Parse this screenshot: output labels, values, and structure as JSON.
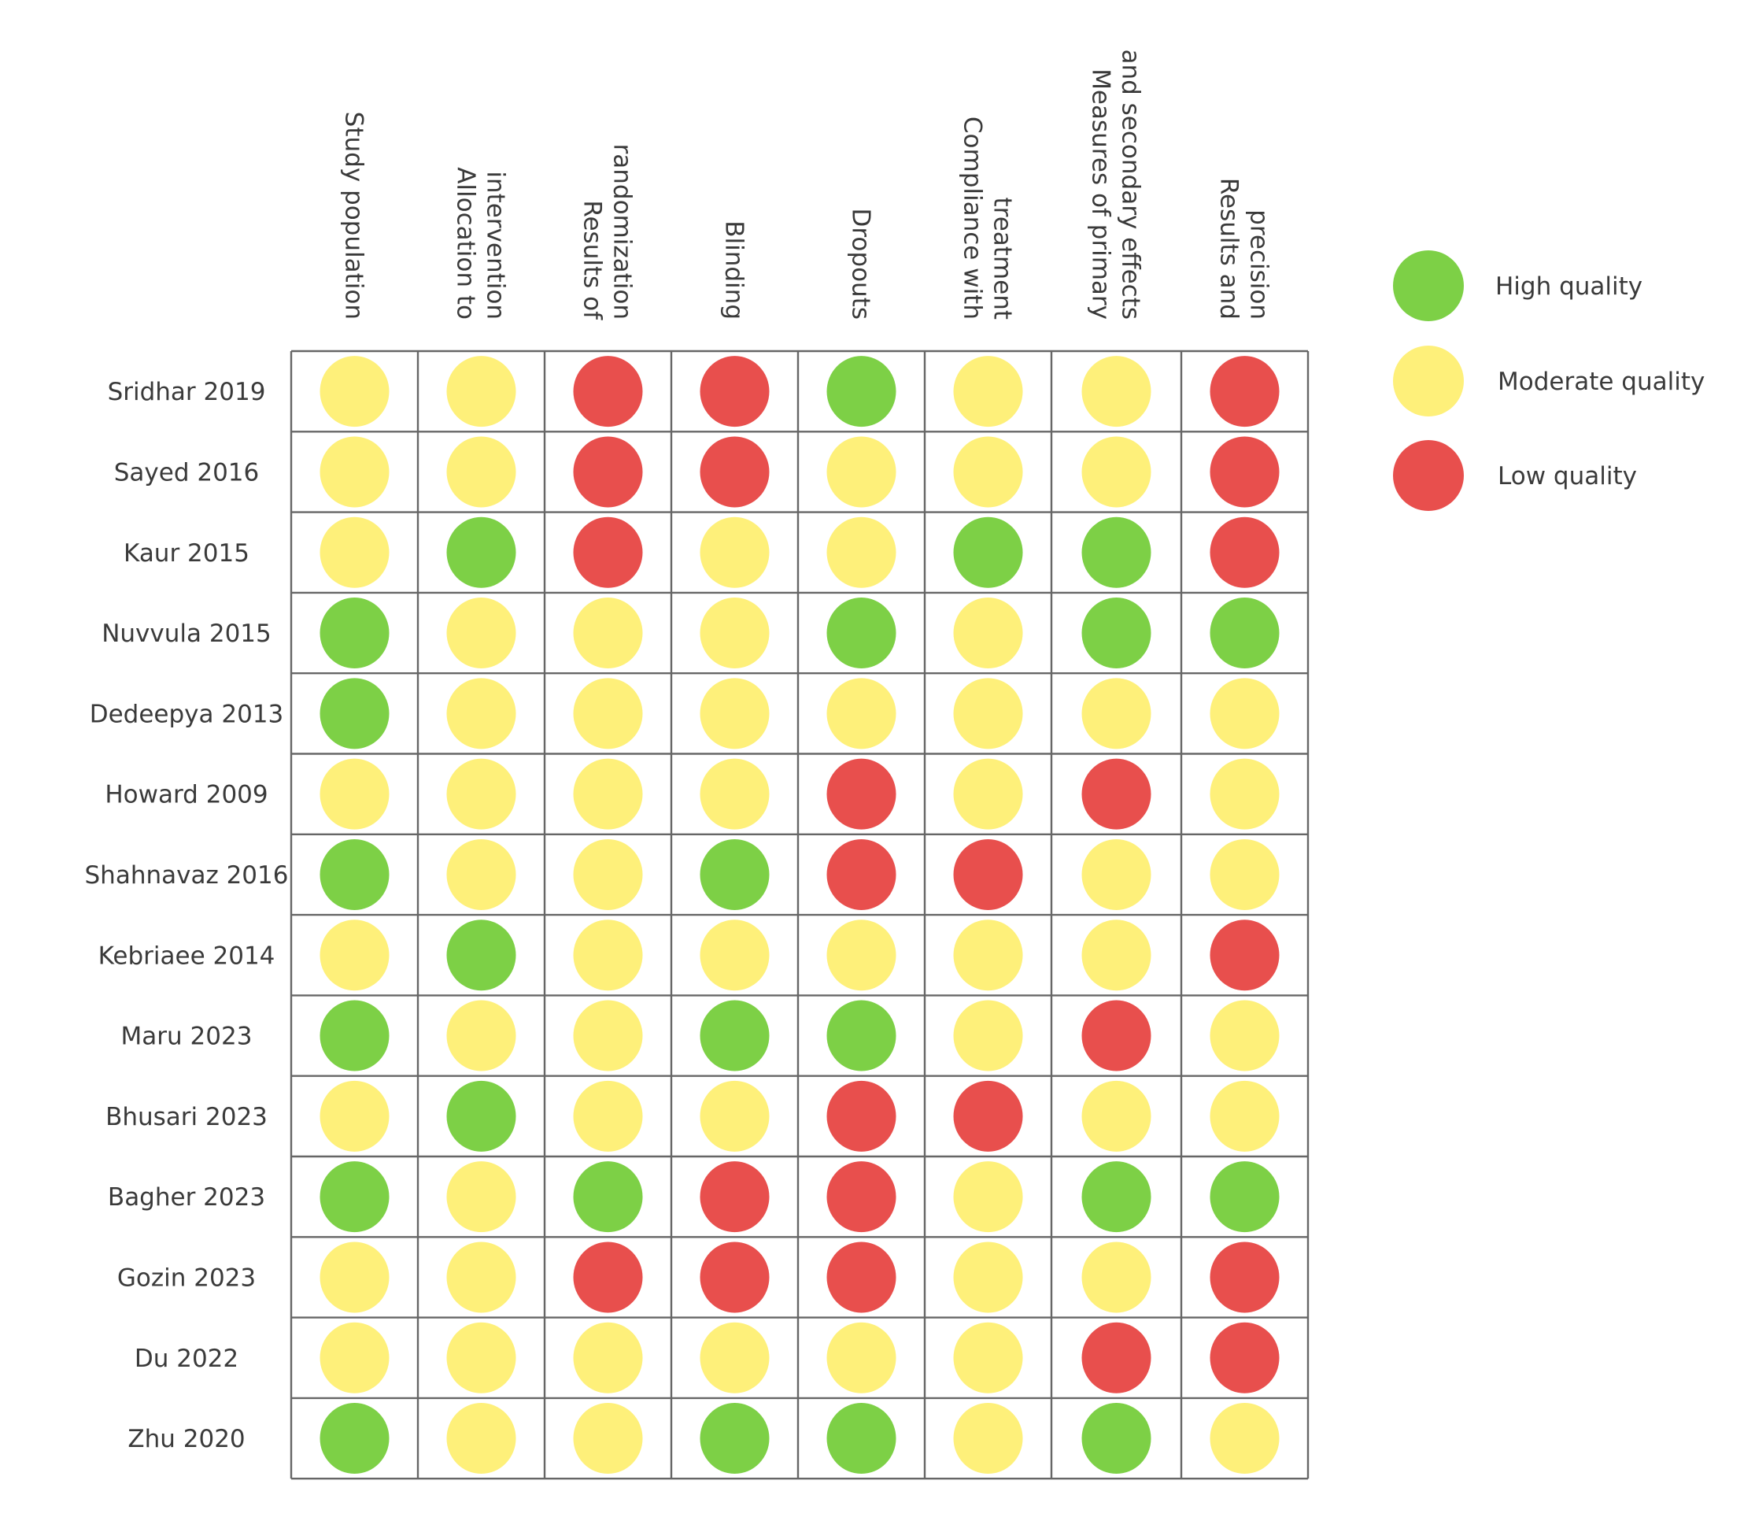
{
  "chart_data": {
    "type": "table",
    "columns": [
      [
        "Study population"
      ],
      [
        "Allocation to",
        "intervention"
      ],
      [
        "Results of",
        "randomization"
      ],
      [
        "Blinding"
      ],
      [
        "Dropouts"
      ],
      [
        "Compliance with",
        "treatment"
      ],
      [
        "Measures of primary",
        "and secondary effects"
      ],
      [
        "Results and",
        "precision"
      ]
    ],
    "rows": [
      {
        "study": "Sridhar 2019",
        "ratings": [
          "M",
          "M",
          "L",
          "L",
          "H",
          "M",
          "M",
          "L"
        ]
      },
      {
        "study": "Sayed 2016",
        "ratings": [
          "M",
          "M",
          "L",
          "L",
          "M",
          "M",
          "M",
          "L"
        ]
      },
      {
        "study": "Kaur 2015",
        "ratings": [
          "M",
          "H",
          "L",
          "M",
          "M",
          "H",
          "H",
          "L"
        ]
      },
      {
        "study": "Nuvvula 2015",
        "ratings": [
          "H",
          "M",
          "M",
          "M",
          "H",
          "M",
          "H",
          "H"
        ]
      },
      {
        "study": "Dedeepya 2013",
        "ratings": [
          "H",
          "M",
          "M",
          "M",
          "M",
          "M",
          "M",
          "M"
        ]
      },
      {
        "study": "Howard 2009",
        "ratings": [
          "M",
          "M",
          "M",
          "M",
          "L",
          "M",
          "L",
          "M"
        ]
      },
      {
        "study": "Shahnavaz 2016",
        "ratings": [
          "H",
          "M",
          "M",
          "H",
          "L",
          "L",
          "M",
          "M"
        ]
      },
      {
        "study": "Kebriaee 2014",
        "ratings": [
          "M",
          "H",
          "M",
          "M",
          "M",
          "M",
          "M",
          "L"
        ]
      },
      {
        "study": "Maru 2023",
        "ratings": [
          "H",
          "M",
          "M",
          "H",
          "H",
          "M",
          "L",
          "M"
        ]
      },
      {
        "study": "Bhusari 2023",
        "ratings": [
          "M",
          "H",
          "M",
          "M",
          "L",
          "L",
          "M",
          "M"
        ]
      },
      {
        "study": "Bagher 2023",
        "ratings": [
          "H",
          "M",
          "H",
          "L",
          "L",
          "M",
          "H",
          "H"
        ]
      },
      {
        "study": "Gozin 2023",
        "ratings": [
          "M",
          "M",
          "L",
          "L",
          "L",
          "M",
          "M",
          "L"
        ]
      },
      {
        "study": "Du 2022",
        "ratings": [
          "M",
          "M",
          "M",
          "M",
          "M",
          "M",
          "L",
          "L"
        ]
      },
      {
        "study": "Zhu 2020",
        "ratings": [
          "H",
          "M",
          "M",
          "H",
          "H",
          "M",
          "H",
          "M"
        ]
      }
    ],
    "legend": [
      {
        "code": "H",
        "label": "High quality",
        "color": "#7dd046"
      },
      {
        "code": "M",
        "label": "Moderate quality",
        "color": "#fef07a"
      },
      {
        "code": "L",
        "label": "Low quality",
        "color": "#e84f4d"
      }
    ],
    "legend_position": "top-right",
    "grid_color": "#666666"
  }
}
